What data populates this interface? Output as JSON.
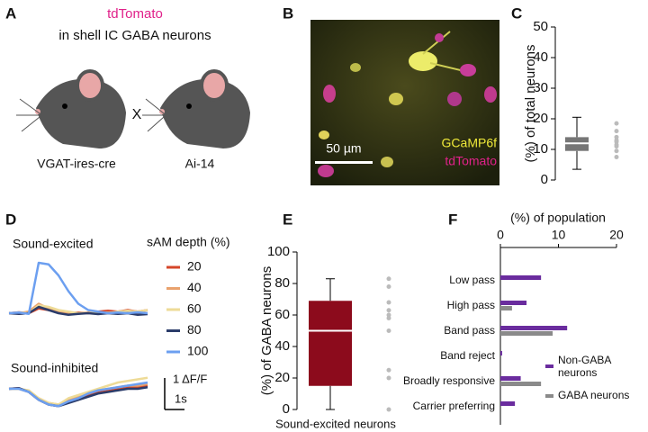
{
  "panel_labels": [
    "A",
    "B",
    "C",
    "D",
    "E",
    "F"
  ],
  "panel_a": {
    "highlight": "tdTomato",
    "title": "in shell IC GABA neurons",
    "cross": "X",
    "left_label": "VGAT-ires-cre",
    "right_label": "Ai-14"
  },
  "panel_b": {
    "labels": [
      "GCaMP6f",
      "tdTomato"
    ],
    "scale_bar": "50 µm"
  },
  "chart_data": [
    {
      "type": "box",
      "ylabel": "(%) of total neurons",
      "ylim": [
        0,
        50
      ],
      "yticks": [
        0,
        10,
        20,
        30,
        40,
        50
      ],
      "color": "#767676",
      "box": {
        "min": 3.5,
        "q1": 9.5,
        "median": 12,
        "q3": 14,
        "max": 20.5
      },
      "points": [
        18.5,
        16,
        14,
        13,
        12.5,
        11.5,
        11,
        9.5,
        7.5
      ]
    },
    {
      "type": "line",
      "x": [
        0,
        0.5,
        1,
        1.5,
        2,
        2.5,
        3,
        3.5,
        4,
        4.5,
        5,
        5.5,
        6,
        6.5,
        7
      ],
      "legend": {
        "title": "sAM depth (%)",
        "entries": [
          {
            "name": "20",
            "color": "#d5462a"
          },
          {
            "name": "40",
            "color": "#e9a26d"
          },
          {
            "name": "60",
            "color": "#eedb97"
          },
          {
            "name": "80",
            "color": "#2b3c6a"
          },
          {
            "name": "100",
            "color": "#6c9ff0"
          }
        ]
      },
      "panels": [
        {
          "title": "Sound-excited",
          "series": [
            {
              "values": [
                0,
                0.03,
                0,
                0.15,
                0.1,
                0.05,
                0,
                0.02,
                0,
                0.05,
                0.08,
                0.05,
                0.1,
                0.05,
                0.1
              ]
            },
            {
              "values": [
                0,
                0,
                0.05,
                0.3,
                0.15,
                0.05,
                0,
                0,
                0.02,
                0,
                0.03,
                0,
                0.05,
                0,
                0
              ]
            },
            {
              "values": [
                0,
                0.02,
                0,
                0.25,
                0.2,
                0.1,
                0.05,
                0,
                0,
                0.02,
                0,
                0.05,
                0.08,
                0.05,
                0.1
              ]
            },
            {
              "values": [
                0,
                -0.02,
                0,
                0.2,
                0.1,
                0,
                -0.05,
                -0.02,
                0,
                -0.03,
                0,
                -0.02,
                0,
                -0.05,
                -0.03
              ]
            },
            {
              "values": [
                0,
                0.02,
                -0.02,
                1.6,
                1.55,
                1.2,
                0.7,
                0.3,
                0.1,
                0.05,
                0,
                0.02,
                0,
                0.03,
                0
              ]
            }
          ]
        },
        {
          "title": "Sound-inhibited",
          "series": [
            {
              "values": [
                0,
                0.02,
                -0.1,
                -0.35,
                -0.5,
                -0.55,
                -0.4,
                -0.3,
                -0.2,
                -0.1,
                -0.05,
                0,
                0.05,
                0.05,
                0.1
              ]
            },
            {
              "values": [
                0,
                0,
                -0.1,
                -0.3,
                -0.45,
                -0.5,
                -0.35,
                -0.25,
                -0.15,
                -0.05,
                0,
                0.05,
                0.1,
                0.1,
                0.15
              ]
            },
            {
              "values": [
                0,
                0,
                -0.05,
                -0.3,
                -0.45,
                -0.5,
                -0.3,
                -0.2,
                -0.1,
                0,
                0.1,
                0.2,
                0.25,
                0.3,
                0.35
              ]
            },
            {
              "values": [
                0,
                0.02,
                -0.1,
                -0.35,
                -0.5,
                -0.55,
                -0.45,
                -0.35,
                -0.25,
                -0.15,
                -0.1,
                -0.05,
                0,
                0,
                0.05
              ]
            },
            {
              "values": [
                0,
                0,
                -0.1,
                -0.35,
                -0.5,
                -0.55,
                -0.4,
                -0.3,
                -0.15,
                -0.05,
                0,
                0.05,
                0.1,
                0.15,
                0.2
              ]
            }
          ]
        }
      ],
      "scale_bar": {
        "y": {
          "value": 1,
          "label": "1 ΔF/F"
        },
        "x": {
          "value": 1,
          "label": "1s"
        }
      }
    },
    {
      "type": "box",
      "ylabel": "(%) of GABA neurons",
      "xlabel": "Sound-excited neurons",
      "ylim": [
        0,
        100
      ],
      "yticks": [
        0,
        20,
        40,
        60,
        80,
        100
      ],
      "color": "#8c0b1c",
      "box": {
        "min": 0,
        "q1": 15,
        "median": 50,
        "q3": 69,
        "max": 83
      },
      "points": [
        83,
        78,
        68,
        63,
        60,
        58,
        50,
        25,
        20,
        0
      ]
    },
    {
      "type": "hbar",
      "xlabel": "(%) of population",
      "xlim": [
        0,
        20
      ],
      "xticks": [
        0,
        10,
        20
      ],
      "categories": [
        "Low pass",
        "High pass",
        "Band pass",
        "Band reject",
        "Broadly responsive",
        "Carrier preferring"
      ],
      "series": [
        {
          "name": "Non-GABA neurons",
          "color": "#6a2c9e",
          "values": [
            7,
            4.5,
            11.5,
            0.3,
            3.5,
            2.5
          ]
        },
        {
          "name": "GABA neurons",
          "color": "#8a8a8a",
          "values": [
            0,
            2,
            9,
            0,
            7,
            0
          ]
        }
      ]
    }
  ]
}
